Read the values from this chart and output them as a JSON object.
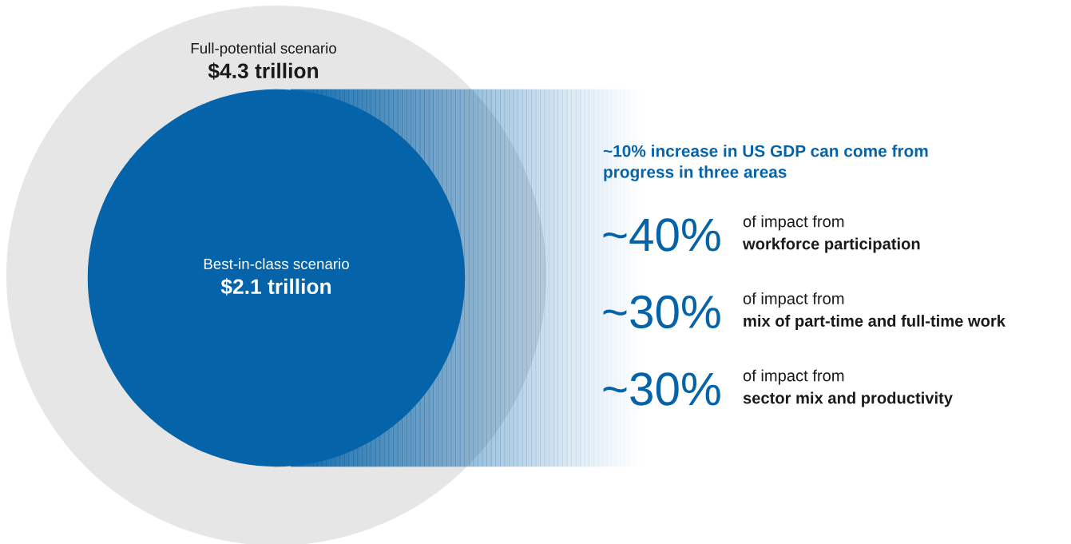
{
  "chart_data": {
    "type": "other",
    "categories": [
      "Full-potential scenario",
      "Best-in-class scenario"
    ],
    "values": [
      4.3,
      2.1
    ],
    "value_labels": [
      "$4.3 trillion",
      "$2.1 trillion"
    ],
    "colors": [
      "#e6e6e6",
      "#0563a9"
    ],
    "annotations": [
      "~10% increase in US GDP can come from\nprogress in three areas",
      "~40%",
      "of impact from",
      "workforce participation",
      "~30%",
      "of impact from",
      "mix of part-time and full-time work",
      "~30%",
      "of impact from",
      "sector mix and productivity"
    ]
  }
}
